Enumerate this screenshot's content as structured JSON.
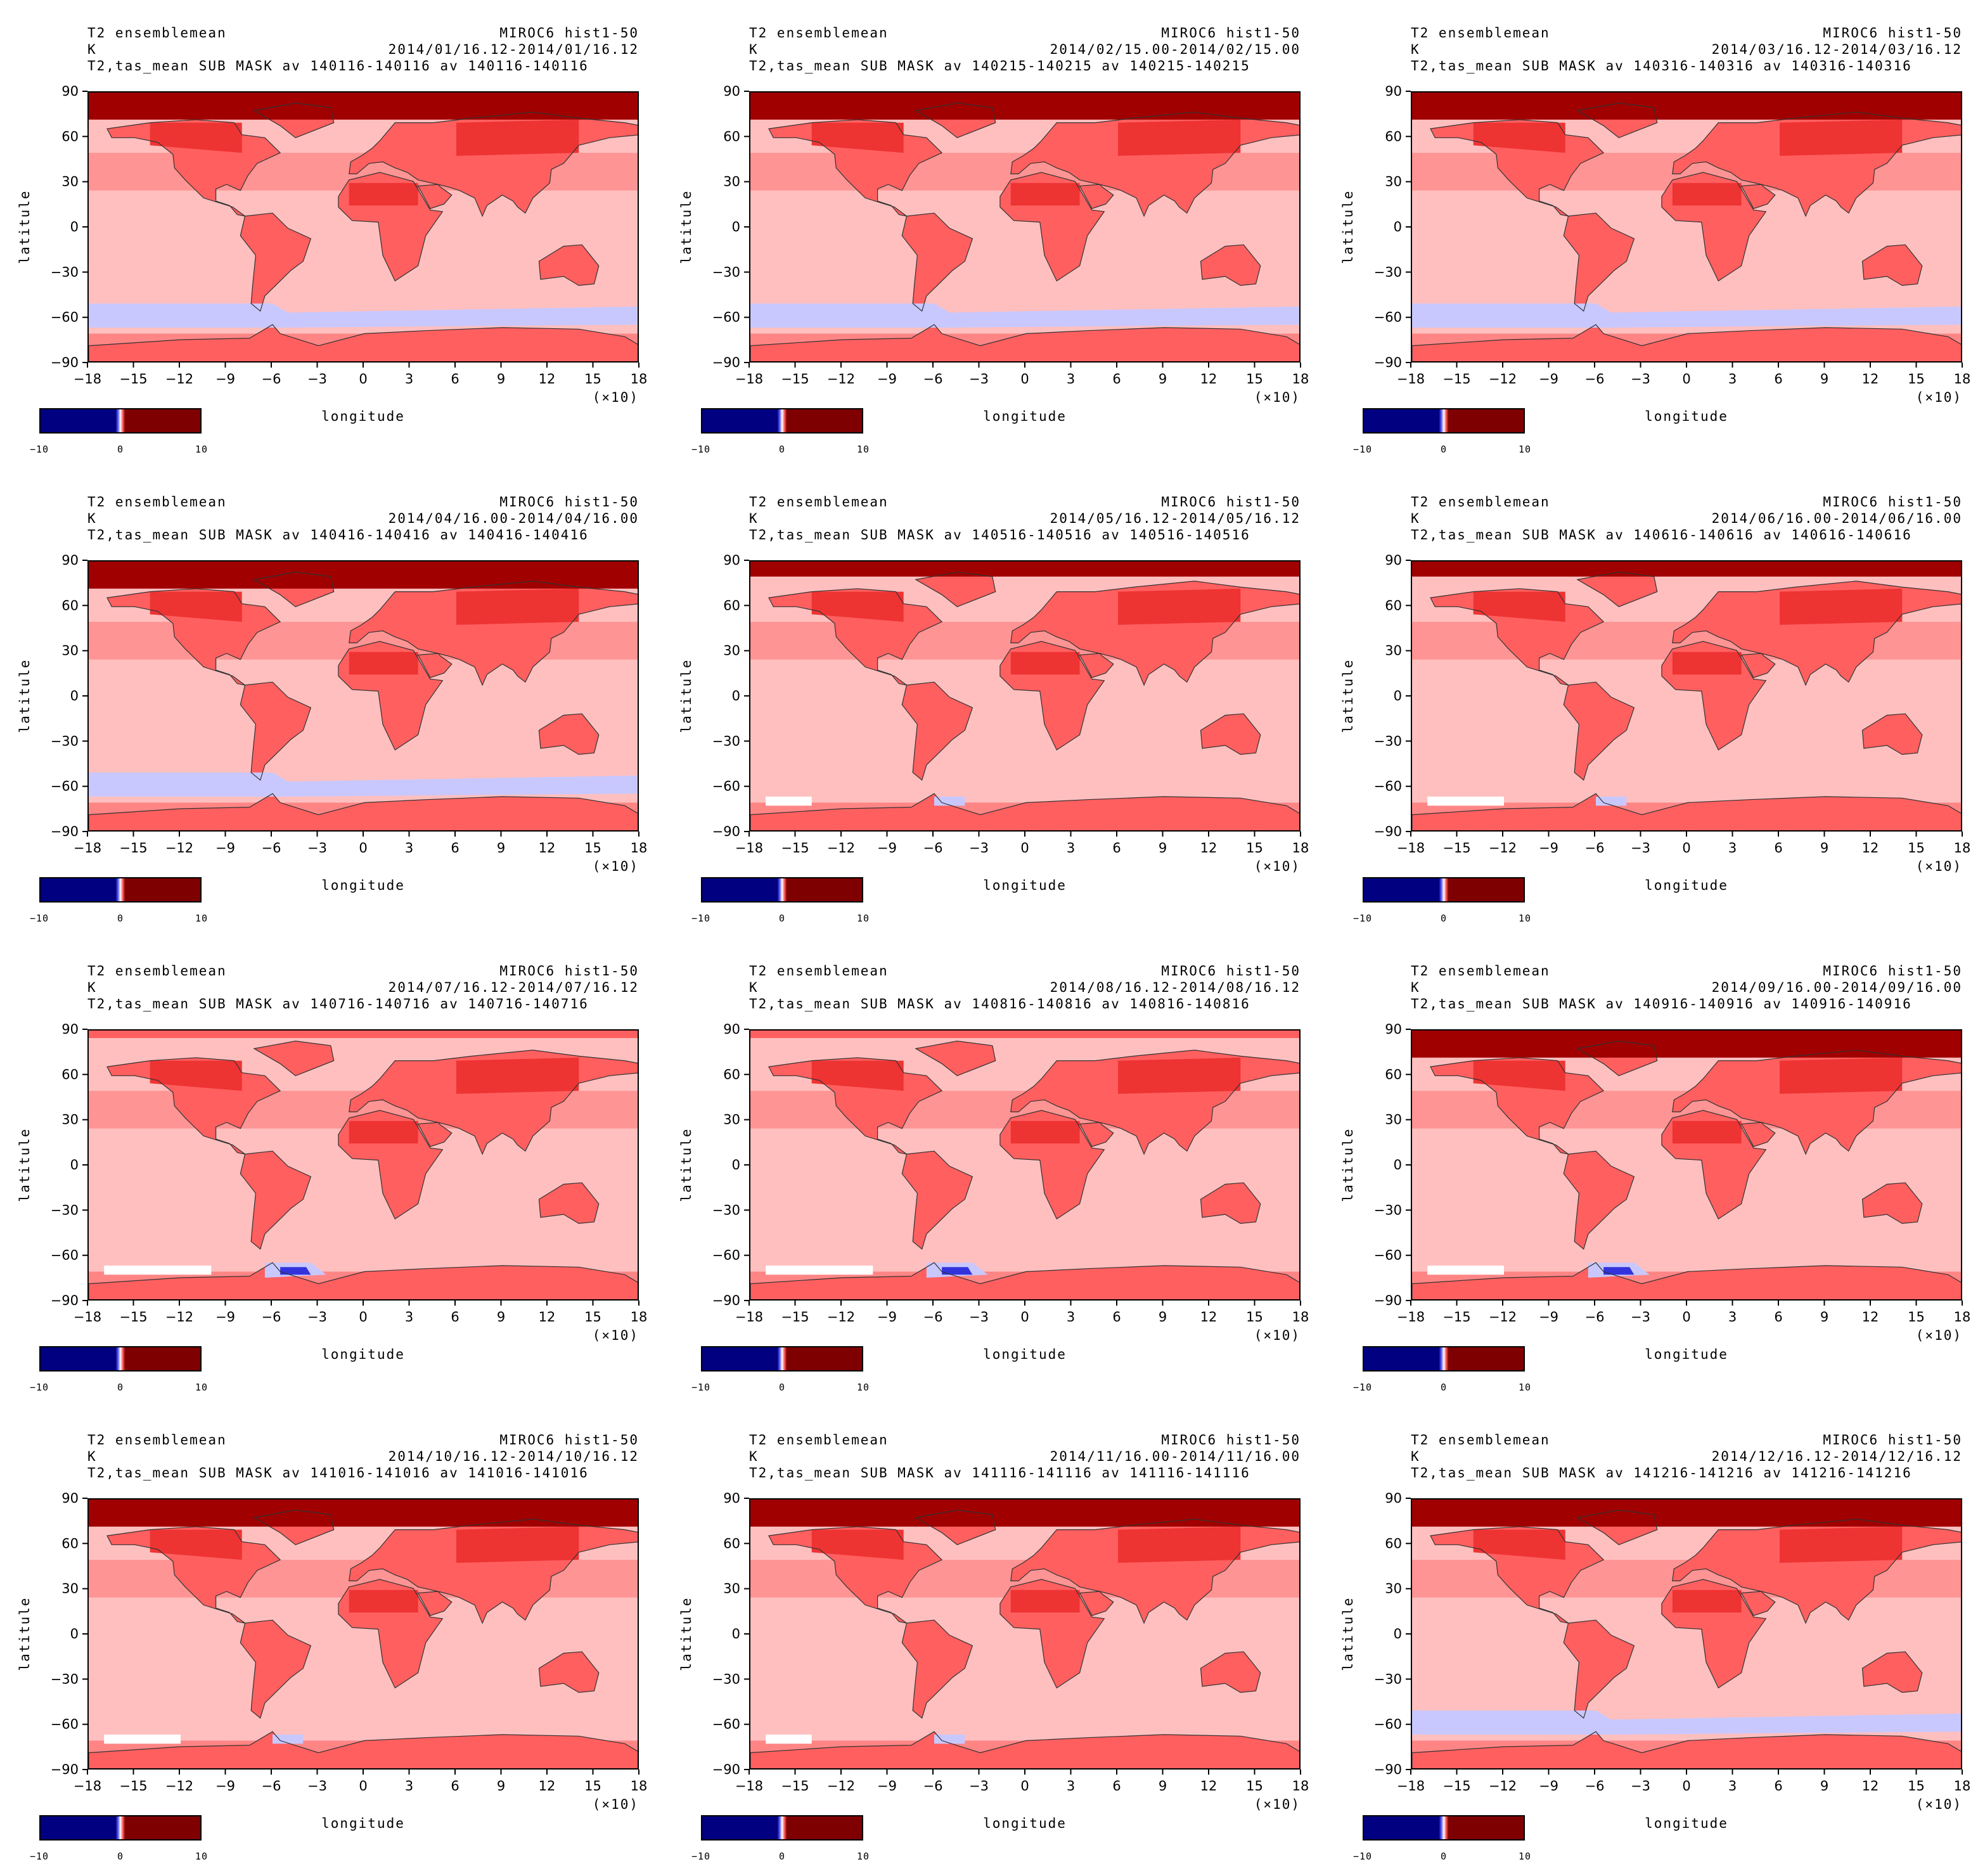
{
  "common": {
    "left_title": "T2 ensemblemean",
    "right_title": "MIROC6 hist1-50",
    "unit": "K",
    "xlabel": "longitude",
    "ylabel": "latitule",
    "x_multiplier": "(×10)",
    "x_ticks": [
      "−18",
      "−15",
      "−12",
      "−9",
      "−6",
      "−3",
      "0",
      "3",
      "6",
      "9",
      "12",
      "15",
      "18"
    ],
    "y_ticks": [
      "90",
      "60",
      "30",
      "0",
      "−30",
      "−60",
      "−90"
    ],
    "colorbar_ticks": [
      "−10",
      "0",
      "10"
    ],
    "colors": {
      "ocean_light": "#ffbfbf",
      "mid_red": "#ff5f5f",
      "strong_red": "#ee3333",
      "dark_red": "#a00000",
      "light_blue": "#c8c8ff",
      "blue": "#3333dd",
      "navy": "#000080",
      "maroon": "#7f0000"
    }
  },
  "chart_data": [
    {
      "type": "heatmap",
      "month": "01",
      "time_range": "2014/01/16.12-2014/01/16.12",
      "subtitle": "T2,tas_mean SUB MASK av 140116-140116 av 140116-140116",
      "xlim": [
        -180,
        180
      ],
      "ylim": [
        -90,
        90
      ],
      "arctic_intensity": "high",
      "blue_patches": "southern_ocean",
      "white_patches": "none"
    },
    {
      "type": "heatmap",
      "month": "02",
      "time_range": "2014/02/15.00-2014/02/15.00",
      "subtitle": "T2,tas_mean SUB MASK av 140215-140215 av 140215-140215",
      "xlim": [
        -180,
        180
      ],
      "ylim": [
        -90,
        90
      ],
      "arctic_intensity": "high",
      "blue_patches": "southern_ocean",
      "white_patches": "none"
    },
    {
      "type": "heatmap",
      "month": "03",
      "time_range": "2014/03/16.12-2014/03/16.12",
      "subtitle": "T2,tas_mean SUB MASK av 140316-140316 av 140316-140316",
      "xlim": [
        -180,
        180
      ],
      "ylim": [
        -90,
        90
      ],
      "arctic_intensity": "high",
      "blue_patches": "southern_ocean",
      "white_patches": "none"
    },
    {
      "type": "heatmap",
      "month": "04",
      "time_range": "2014/04/16.00-2014/04/16.00",
      "subtitle": "T2,tas_mean SUB MASK av 140416-140416 av 140416-140416",
      "xlim": [
        -180,
        180
      ],
      "ylim": [
        -90,
        90
      ],
      "arctic_intensity": "high",
      "blue_patches": "southern_ocean",
      "white_patches": "none"
    },
    {
      "type": "heatmap",
      "month": "05",
      "time_range": "2014/05/16.12-2014/05/16.12",
      "subtitle": "T2,tas_mean SUB MASK av 140516-140516 av 140516-140516",
      "xlim": [
        -180,
        180
      ],
      "ylim": [
        -90,
        90
      ],
      "arctic_intensity": "medium",
      "blue_patches": "small",
      "white_patches": "small"
    },
    {
      "type": "heatmap",
      "month": "06",
      "time_range": "2014/06/16.00-2014/06/16.00",
      "subtitle": "T2,tas_mean SUB MASK av 140616-140616 av 140616-140616",
      "xlim": [
        -180,
        180
      ],
      "ylim": [
        -90,
        90
      ],
      "arctic_intensity": "medium",
      "blue_patches": "small",
      "white_patches": "medium"
    },
    {
      "type": "heatmap",
      "month": "07",
      "time_range": "2014/07/16.12-2014/07/16.12",
      "subtitle": "T2,tas_mean SUB MASK av 140716-140716 av 140716-140716",
      "xlim": [
        -180,
        180
      ],
      "ylim": [
        -90,
        90
      ],
      "arctic_intensity": "low",
      "blue_patches": "weddell",
      "white_patches": "large"
    },
    {
      "type": "heatmap",
      "month": "08",
      "time_range": "2014/08/16.12-2014/08/16.12",
      "subtitle": "T2,tas_mean SUB MASK av 140816-140816 av 140816-140816",
      "xlim": [
        -180,
        180
      ],
      "ylim": [
        -90,
        90
      ],
      "arctic_intensity": "low",
      "blue_patches": "weddell",
      "white_patches": "large"
    },
    {
      "type": "heatmap",
      "month": "09",
      "time_range": "2014/09/16.00-2014/09/16.00",
      "subtitle": "T2,tas_mean SUB MASK av 140916-140916 av 140916-140916",
      "xlim": [
        -180,
        180
      ],
      "ylim": [
        -90,
        90
      ],
      "arctic_intensity": "high",
      "blue_patches": "weddell",
      "white_patches": "medium"
    },
    {
      "type": "heatmap",
      "month": "10",
      "time_range": "2014/10/16.12-2014/10/16.12",
      "subtitle": "T2,tas_mean SUB MASK av 141016-141016 av 141016-141016",
      "xlim": [
        -180,
        180
      ],
      "ylim": [
        -90,
        90
      ],
      "arctic_intensity": "high",
      "blue_patches": "small",
      "white_patches": "medium"
    },
    {
      "type": "heatmap",
      "month": "11",
      "time_range": "2014/11/16.00-2014/11/16.00",
      "subtitle": "T2,tas_mean SUB MASK av 141116-141116 av 141116-141116",
      "xlim": [
        -180,
        180
      ],
      "ylim": [
        -90,
        90
      ],
      "arctic_intensity": "high",
      "blue_patches": "small",
      "white_patches": "small"
    },
    {
      "type": "heatmap",
      "month": "12",
      "time_range": "2014/12/16.12-2014/12/16.12",
      "subtitle": "T2,tas_mean SUB MASK av 141216-141216 av 141216-141216",
      "xlim": [
        -180,
        180
      ],
      "ylim": [
        -90,
        90
      ],
      "arctic_intensity": "high",
      "blue_patches": "southern_ocean",
      "white_patches": "none"
    }
  ]
}
